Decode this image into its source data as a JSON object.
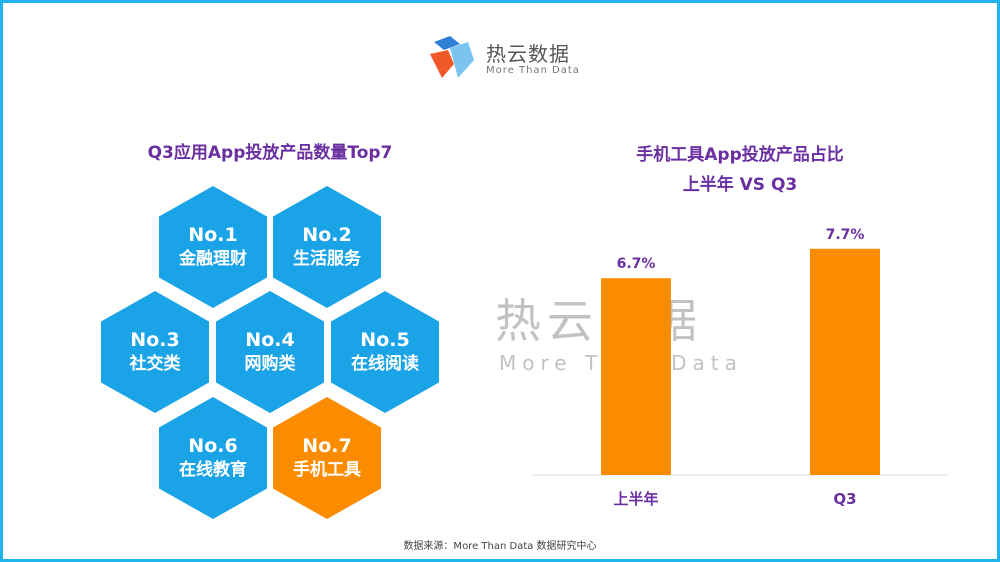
{
  "logo": {
    "cn": "热云数据",
    "en": "More Than Data"
  },
  "left": {
    "title": "Q3应用App投放产品数量Top7",
    "items": [
      {
        "rank": "No.1",
        "name": "金融理财"
      },
      {
        "rank": "No.2",
        "name": "生活服务"
      },
      {
        "rank": "No.3",
        "name": "社交类"
      },
      {
        "rank": "No.4",
        "name": "网购类"
      },
      {
        "rank": "No.5",
        "name": "在线阅读"
      },
      {
        "rank": "No.6",
        "name": "在线教育"
      },
      {
        "rank": "No.7",
        "name": "手机工具",
        "highlight": true
      }
    ]
  },
  "watermark": {
    "cn": "热云数据",
    "en": "More Than Data"
  },
  "chart_data": {
    "type": "bar",
    "title": "手机工具App投放产品占比",
    "subtitle": "上半年 VS Q3",
    "categories": [
      "上半年",
      "Q3"
    ],
    "values": [
      6.7,
      7.7
    ],
    "data_labels": [
      "6.7%",
      "7.7%"
    ],
    "ylim": [
      0,
      8
    ],
    "grid": false,
    "bar_color": "#fb8c00",
    "label_color": "#6a2fa0"
  },
  "source": "数据来源：More Than Data 数据研究中心",
  "colors": {
    "hex_blue": "#1aa3e6",
    "hex_orange": "#fb8c00",
    "border": "#1fb4ec",
    "title": "#6a2fa0"
  }
}
